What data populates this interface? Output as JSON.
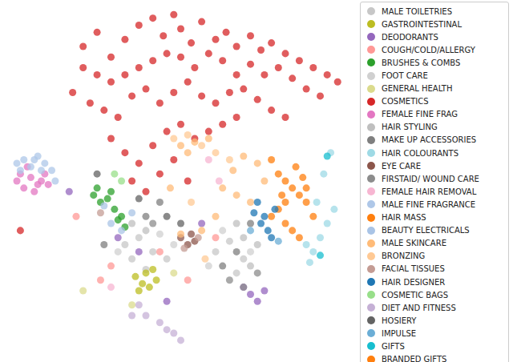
{
  "chart_data": {
    "type": "scatter",
    "xlim": [
      0,
      100
    ],
    "ylim": [
      0,
      100
    ],
    "tick_labels": false,
    "legend": "outside right",
    "series": [
      {
        "name": "MALE TOILETRIES",
        "color": "#c7c7c7",
        "values": [
          [
            34,
            32
          ],
          [
            38,
            34
          ],
          [
            42,
            30
          ],
          [
            46,
            28
          ],
          [
            36,
            28
          ],
          [
            40,
            25
          ],
          [
            60,
            30
          ],
          [
            64,
            33
          ],
          [
            68,
            28
          ],
          [
            66,
            24
          ]
        ]
      },
      {
        "name": "GASTROINTESTINAL",
        "color": "#bcbd22",
        "values": [
          [
            37,
            23
          ],
          [
            39,
            21
          ],
          [
            41,
            20
          ],
          [
            43,
            22
          ],
          [
            38,
            19
          ],
          [
            40,
            24
          ],
          [
            42,
            25
          ]
        ]
      },
      {
        "name": "DEODORANTS",
        "color": "#9467bd",
        "values": [
          [
            68,
            20
          ],
          [
            70,
            18
          ],
          [
            72,
            16
          ],
          [
            74,
            19
          ],
          [
            18,
            47
          ],
          [
            32,
            34
          ],
          [
            46,
            16
          ],
          [
            56,
            38
          ],
          [
            38,
            30
          ]
        ]
      },
      {
        "name": "COUGH/COLD/ALLERGY",
        "color": "#ff9896",
        "values": [
          [
            27,
            22
          ],
          [
            30,
            26
          ],
          [
            44,
            30
          ],
          [
            60,
            34
          ],
          [
            20,
            40
          ],
          [
            52,
            22
          ]
        ]
      },
      {
        "name": "BRUSHES & COMBS",
        "color": "#2ca02c",
        "values": [
          [
            25,
            46
          ],
          [
            27,
            44
          ],
          [
            29,
            45
          ],
          [
            31,
            42
          ],
          [
            33,
            40
          ],
          [
            34,
            37
          ],
          [
            26,
            48
          ],
          [
            30,
            47
          ],
          [
            32,
            39
          ]
        ]
      },
      {
        "name": "FOOT CARE",
        "color": "#d0d0d0",
        "values": [
          [
            32,
            30
          ],
          [
            44,
            35
          ],
          [
            48,
            32
          ],
          [
            62,
            36
          ],
          [
            70,
            30
          ],
          [
            58,
            26
          ]
        ]
      },
      {
        "name": "GENERAL HEALTH",
        "color": "#dbdb8d",
        "values": [
          [
            22,
            19
          ],
          [
            48,
            24
          ],
          [
            36,
            15
          ]
        ]
      },
      {
        "name": "COSMETICS",
        "color": "#d62728",
        "values": [
          [
            22,
            88
          ],
          [
            26,
            92
          ],
          [
            30,
            85
          ],
          [
            34,
            90
          ],
          [
            38,
            94
          ],
          [
            42,
            96
          ],
          [
            45,
            91
          ],
          [
            48,
            97
          ],
          [
            50,
            93
          ],
          [
            53,
            89
          ],
          [
            56,
            95
          ],
          [
            60,
            90
          ],
          [
            63,
            92
          ],
          [
            66,
            88
          ],
          [
            70,
            91
          ],
          [
            73,
            87
          ],
          [
            76,
            89
          ],
          [
            80,
            86
          ],
          [
            84,
            84
          ],
          [
            88,
            82
          ],
          [
            92,
            80
          ],
          [
            95,
            78
          ],
          [
            90,
            74
          ],
          [
            86,
            76
          ],
          [
            82,
            79
          ],
          [
            78,
            82
          ],
          [
            74,
            80
          ],
          [
            70,
            83
          ],
          [
            66,
            80
          ],
          [
            62,
            84
          ],
          [
            58,
            86
          ],
          [
            54,
            82
          ],
          [
            50,
            85
          ],
          [
            46,
            86
          ],
          [
            42,
            84
          ],
          [
            38,
            82
          ],
          [
            34,
            80
          ],
          [
            30,
            78
          ],
          [
            26,
            80
          ],
          [
            22,
            82
          ],
          [
            19,
            75
          ],
          [
            24,
            72
          ],
          [
            28,
            70
          ],
          [
            32,
            68
          ],
          [
            36,
            74
          ],
          [
            40,
            76
          ],
          [
            44,
            72
          ],
          [
            48,
            75
          ],
          [
            52,
            78
          ],
          [
            56,
            74
          ],
          [
            60,
            72
          ],
          [
            64,
            75
          ],
          [
            68,
            76
          ],
          [
            72,
            73
          ],
          [
            76,
            70
          ],
          [
            80,
            68
          ],
          [
            30,
            62
          ],
          [
            34,
            58
          ],
          [
            38,
            55
          ],
          [
            42,
            60
          ],
          [
            46,
            64
          ],
          [
            50,
            66
          ],
          [
            54,
            62
          ],
          [
            58,
            64
          ],
          [
            36,
            50
          ],
          [
            40,
            47
          ],
          [
            44,
            52
          ],
          [
            48,
            56
          ],
          [
            52,
            50
          ],
          [
            62,
            66
          ],
          [
            66,
            68
          ],
          [
            4,
            36
          ]
        ]
      },
      {
        "name": "FEMALE FINE FRAG",
        "color": "#e377c2",
        "values": [
          [
            3,
            50
          ],
          [
            5,
            48
          ],
          [
            7,
            51
          ],
          [
            9,
            49
          ],
          [
            11,
            52
          ],
          [
            6,
            54
          ],
          [
            8,
            47
          ],
          [
            10,
            50
          ],
          [
            4,
            52
          ],
          [
            12,
            49
          ]
        ]
      },
      {
        "name": "HAIR STYLING",
        "color": "#bfbfbf",
        "values": [
          [
            36,
            38
          ],
          [
            40,
            36
          ],
          [
            66,
            38
          ],
          [
            68,
            34
          ],
          [
            72,
            32
          ],
          [
            70,
            26
          ]
        ]
      },
      {
        "name": "MAKE UP ACCESSORIES",
        "color": "#7f7f7f",
        "values": [
          [
            40,
            40
          ],
          [
            44,
            44
          ],
          [
            28,
            32
          ],
          [
            62,
            26
          ],
          [
            66,
            30
          ],
          [
            70,
            38
          ]
        ]
      },
      {
        "name": "HAIR COLOURANTS",
        "color": "#9edae5",
        "values": [
          [
            86,
            32
          ],
          [
            88,
            30
          ],
          [
            90,
            34
          ],
          [
            92,
            38
          ],
          [
            89,
            44
          ],
          [
            91,
            52
          ],
          [
            93,
            58
          ],
          [
            87,
            27
          ],
          [
            94,
            42
          ]
        ]
      },
      {
        "name": "EYE CARE",
        "color": "#8c564b",
        "values": [
          [
            50,
            34
          ],
          [
            52,
            32
          ],
          [
            54,
            33
          ],
          [
            53,
            35
          ]
        ]
      },
      {
        "name": "FIRSTAID/ WOUND CARE",
        "color": "#8c8c8c",
        "values": [
          [
            42,
            38
          ],
          [
            64,
            22
          ],
          [
            68,
            20
          ],
          [
            72,
            24
          ]
        ]
      },
      {
        "name": "FEMALE HAIR REMOVAL",
        "color": "#f7b6d2",
        "values": [
          [
            58,
            56
          ],
          [
            61,
            50
          ],
          [
            30,
            20
          ]
        ]
      },
      {
        "name": "MALE FINE FRAGRANCE",
        "color": "#aec7e8",
        "values": [
          [
            3,
            55
          ],
          [
            5,
            56
          ],
          [
            7,
            54
          ],
          [
            9,
            57
          ],
          [
            11,
            55
          ],
          [
            13,
            53
          ],
          [
            4,
            53
          ],
          [
            8,
            56
          ],
          [
            10,
            53
          ],
          [
            14,
            50
          ]
        ]
      },
      {
        "name": "HAIR MASS",
        "color": "#ff7f0e",
        "values": [
          [
            76,
            56
          ],
          [
            78,
            52
          ],
          [
            80,
            50
          ],
          [
            82,
            48
          ],
          [
            84,
            46
          ],
          [
            86,
            44
          ],
          [
            78,
            42
          ],
          [
            80,
            38
          ],
          [
            82,
            36
          ],
          [
            84,
            34
          ],
          [
            76,
            40
          ],
          [
            79,
            46
          ],
          [
            83,
            54
          ],
          [
            85,
            51
          ],
          [
            88,
            40
          ]
        ]
      },
      {
        "name": "BEAUTY ELECTRICALS",
        "color": "#a9c4e6",
        "values": [
          [
            30,
            38
          ],
          [
            33,
            36
          ],
          [
            36,
            41
          ],
          [
            28,
            43
          ]
        ]
      },
      {
        "name": "MALE SKINCARE",
        "color": "#ffbb78",
        "values": [
          [
            50,
            60
          ],
          [
            54,
            61
          ],
          [
            58,
            62
          ],
          [
            52,
            58
          ],
          [
            62,
            48
          ],
          [
            66,
            46
          ],
          [
            70,
            44
          ],
          [
            74,
            50
          ],
          [
            65,
            53
          ],
          [
            60,
            40
          ],
          [
            56,
            36
          ],
          [
            50,
            35
          ],
          [
            68,
            57
          ],
          [
            72,
            55
          ],
          [
            47,
            48
          ]
        ]
      },
      {
        "name": "BRONZING",
        "color": "#ffc994",
        "values": [
          [
            48,
            62
          ],
          [
            52,
            63
          ],
          [
            56,
            60
          ],
          [
            60,
            58
          ],
          [
            64,
            56
          ],
          [
            53,
            44
          ],
          [
            57,
            28
          ]
        ]
      },
      {
        "name": "FACIAL TISSUES",
        "color": "#c49c94",
        "values": [
          [
            27,
            41
          ],
          [
            51,
            31
          ],
          [
            55,
            34
          ]
        ]
      },
      {
        "name": "HAIR DESIGNER",
        "color": "#1f77b4",
        "values": [
          [
            71,
            41
          ],
          [
            73,
            38
          ],
          [
            75,
            36
          ],
          [
            77,
            42
          ],
          [
            72,
            44
          ],
          [
            76,
            34
          ],
          [
            74,
            40
          ]
        ]
      },
      {
        "name": "COSMETIC BAGS",
        "color": "#98df8a",
        "values": [
          [
            31,
            52
          ],
          [
            33,
            50
          ]
        ]
      },
      {
        "name": "DIET AND FITNESS",
        "color": "#c5b0d5",
        "values": [
          [
            38,
            15
          ],
          [
            40,
            12
          ],
          [
            46,
            8
          ],
          [
            48,
            7
          ],
          [
            50,
            5
          ],
          [
            44,
            10
          ],
          [
            36,
            12
          ]
        ]
      },
      {
        "name": "HOSIERY",
        "color": "#636363",
        "values": [
          [
            46,
            40
          ],
          [
            50,
            38
          ],
          [
            26,
            52
          ],
          [
            38,
            45
          ]
        ]
      },
      {
        "name": "IMPULSE",
        "color": "#6baed6",
        "values": [
          [
            70,
            36
          ],
          [
            78,
            33
          ]
        ]
      },
      {
        "name": "GIFTS",
        "color": "#17becf",
        "values": [
          [
            92,
            57
          ],
          [
            90,
            29
          ]
        ]
      },
      {
        "name": "BRANDED GIFTS",
        "color": "#ff7f0e",
        "values": [
          [
            80,
            44
          ],
          [
            86,
            48
          ]
        ]
      }
    ]
  }
}
